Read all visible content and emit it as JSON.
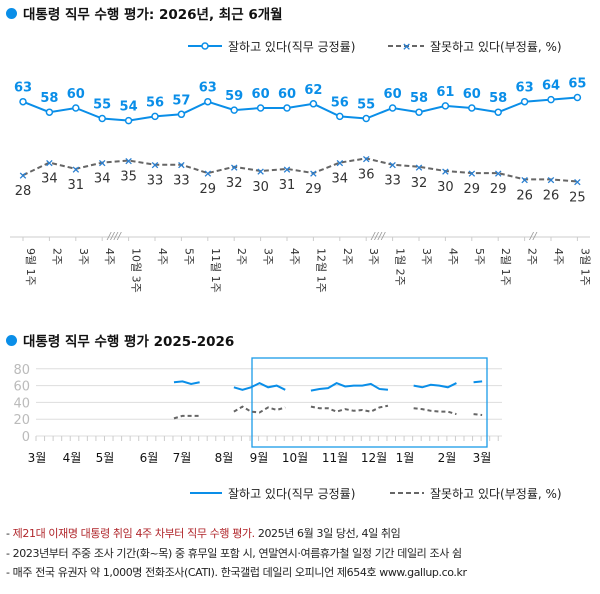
{
  "top": {
    "title": "대통령 직무 수행 평가: 2026년, 최근 6개월",
    "legend": [
      "잘하고 있다(직무 긍정률)",
      "잘못하고 있다(부정률, %)"
    ],
    "colors": {
      "approve": "#0a8ee8",
      "disapprove": "#666666"
    },
    "chart_data": {
      "type": "line",
      "x": [
        "9월 1주",
        "2주",
        "3주",
        "4주",
        "10월 3주",
        "4주",
        "5주",
        "11월 1주",
        "2주",
        "3주",
        "4주",
        "12월 1주",
        "2주",
        "3주",
        "1월 2주",
        "3주",
        "4주",
        "5주",
        "2월 1주",
        "2주",
        "4주",
        "3월 1주"
      ],
      "series": [
        {
          "name": "잘하고 있다(직무 긍정률)",
          "values": [
            63,
            58,
            60,
            55,
            54,
            56,
            57,
            63,
            59,
            60,
            60,
            62,
            56,
            55,
            60,
            58,
            61,
            60,
            58,
            63,
            64,
            65
          ]
        },
        {
          "name": "잘못하고 있다(부정률, %)",
          "values": [
            28,
            34,
            31,
            34,
            35,
            33,
            33,
            29,
            32,
            30,
            31,
            29,
            34,
            36,
            33,
            32,
            30,
            29,
            29,
            26,
            26,
            25
          ]
        }
      ],
      "breaks_after": [
        "4주",
        "3주",
        "2주"
      ],
      "break_symbols": [
        "////",
        "////",
        "//"
      ]
    }
  },
  "bottom": {
    "title": "대통령 직무 수행 평가 2025-2026",
    "legend": [
      "잘하고 있다(직무 긍정률)",
      "잘못하고 있다(부정률, %)"
    ],
    "chart_data": {
      "type": "line",
      "yticks": [
        "80",
        "60",
        "40",
        "20",
        "0"
      ],
      "ylim": [
        0,
        80
      ],
      "month_labels": [
        "3월",
        "4월",
        "5월",
        "6월",
        "7월",
        "8월",
        "9월",
        "10월",
        "11월",
        "12월",
        "1월",
        "2월",
        "3월"
      ],
      "segments": [
        {
          "start_week": 16,
          "approve": [
            64,
            65,
            62,
            64
          ],
          "disapprove": [
            21,
            24,
            24,
            24
          ]
        },
        {
          "start_week": 23,
          "approve": [
            58,
            55,
            58,
            63,
            58,
            60,
            55
          ],
          "disapprove": [
            29,
            35,
            29,
            28,
            34,
            31,
            34
          ]
        },
        {
          "start_week": 32,
          "approve": [
            54,
            56,
            57,
            63,
            59,
            60,
            60,
            62,
            56,
            55
          ],
          "disapprove": [
            35,
            33,
            33,
            29,
            32,
            30,
            31,
            29,
            34,
            36
          ]
        },
        {
          "start_week": 44,
          "approve": [
            60,
            58,
            61,
            60,
            58,
            63
          ],
          "disapprove": [
            33,
            32,
            30,
            29,
            29,
            26
          ]
        },
        {
          "start_week": 51,
          "approve": [
            64,
            65
          ],
          "disapprove": [
            26,
            25
          ]
        }
      ],
      "highlight": "최근 6개월"
    }
  },
  "notes": [
    {
      "red": "제21대 이재명 대통령 취임 4주 차부터 직무 수행 평가.",
      "text": " 2025년 6월 3일 당선, 4일 취임"
    },
    {
      "red": "",
      "text": "2023년부터 주중 조사 기간(화~목) 중 휴무일 포함 시, 연말연시·여름휴가철 일정 기간 데일리 조사 쉼"
    },
    {
      "red": "",
      "text": "매주 전국 유권자 약 1,000명 전화조사(CATI). 한국갤럽 데일리 오피니언 제654호 www.gallup.co.kr"
    }
  ]
}
